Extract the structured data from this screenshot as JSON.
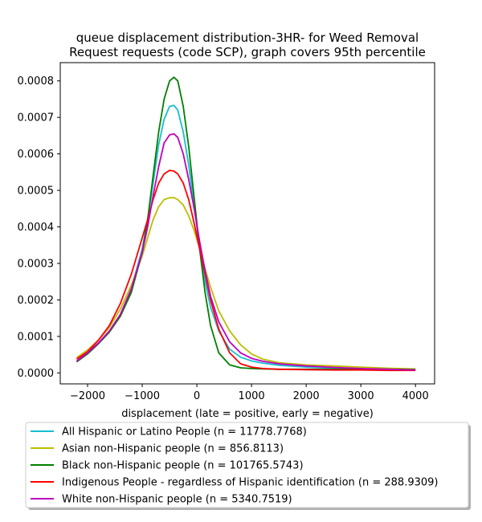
{
  "chart_data": {
    "type": "line",
    "title_lines": [
      "queue displacement distribution-3HR-  for Weed Removal",
      "Request  requests (code SCP), graph covers 95th percentile"
    ],
    "xlabel": "displacement (late = positive, early = negative)",
    "ylabel": "",
    "xlim": [
      -2500,
      4350
    ],
    "ylim": [
      -3e-05,
      0.00085
    ],
    "xticks": [
      -2000,
      -1000,
      0,
      1000,
      2000,
      3000,
      4000
    ],
    "xtick_labels": [
      "−2000",
      "−1000",
      "0",
      "1000",
      "2000",
      "3000",
      "4000"
    ],
    "yticks": [
      0.0,
      0.0001,
      0.0002,
      0.0003,
      0.0004,
      0.0005,
      0.0006,
      0.0007,
      0.0008
    ],
    "ytick_labels": [
      "0.0000",
      "0.0001",
      "0.0002",
      "0.0003",
      "0.0004",
      "0.0005",
      "0.0006",
      "0.0007",
      "0.0008"
    ],
    "grid": false,
    "legend_position": "below",
    "series": [
      {
        "name": "All Hispanic or Latino People (n = 11778.7768)",
        "color": "#17becf",
        "x": [
          -2200,
          -2000,
          -1800,
          -1600,
          -1400,
          -1200,
          -1000,
          -900,
          -800,
          -700,
          -600,
          -500,
          -420,
          -350,
          -250,
          -150,
          -50,
          50,
          150,
          250,
          400,
          600,
          800,
          1000,
          1200,
          1500,
          2000,
          2500,
          3000,
          3500,
          4000
        ],
        "y": [
          3.2e-05,
          5.5e-05,
          8.2e-05,
          0.000115,
          0.00016,
          0.00023,
          0.00034,
          0.00042,
          0.00052,
          0.000625,
          0.000695,
          0.00073,
          0.000733,
          0.00072,
          0.00066,
          0.00057,
          0.00046,
          0.00034,
          0.00025,
          0.00018,
          0.000115,
          6.5e-05,
          4.3e-05,
          3.3e-05,
          2.7e-05,
          2.1e-05,
          1.6e-05,
          1.3e-05,
          1.1e-05,
          1e-05,
          9e-06
        ]
      },
      {
        "name": "Asian non-Hispanic people (n = 856.8113)",
        "color": "#bcbd00",
        "x": [
          -2200,
          -2000,
          -1800,
          -1600,
          -1400,
          -1200,
          -1000,
          -900,
          -800,
          -700,
          -600,
          -500,
          -420,
          -350,
          -250,
          -150,
          -50,
          50,
          150,
          250,
          400,
          600,
          800,
          1000,
          1200,
          1500,
          2000,
          2500,
          3000,
          3500,
          4000
        ],
        "y": [
          4.2e-05,
          6.3e-05,
          9e-05,
          0.000125,
          0.000175,
          0.00024,
          0.00032,
          0.00037,
          0.00042,
          0.000455,
          0.000475,
          0.00048,
          0.00048,
          0.000475,
          0.00046,
          0.00043,
          0.00039,
          0.00034,
          0.000285,
          0.000235,
          0.00017,
          0.000115,
          7.7e-05,
          5.2e-05,
          3.8e-05,
          2.8e-05,
          2.2e-05,
          1.9e-05,
          1.6e-05,
          1.3e-05,
          1.1e-05
        ]
      },
      {
        "name": "Black non-Hispanic people (n = 101765.5743)",
        "color": "#008000",
        "x": [
          -2200,
          -2000,
          -1800,
          -1600,
          -1400,
          -1200,
          -1000,
          -900,
          -800,
          -700,
          -600,
          -500,
          -420,
          -350,
          -250,
          -150,
          -50,
          50,
          150,
          250,
          400,
          600,
          800,
          1000,
          1200,
          1500,
          2000,
          2500,
          3000,
          3500,
          4000
        ],
        "y": [
          3e-05,
          5.2e-05,
          8e-05,
          0.000112,
          0.000155,
          0.00022,
          0.00033,
          0.00042,
          0.00054,
          0.00066,
          0.00075,
          0.0008,
          0.00081,
          0.0008,
          0.00073,
          0.00062,
          0.00048,
          0.00034,
          0.00022,
          0.00013,
          5.5e-05,
          2.2e-05,
          1.4e-05,
          1.2e-05,
          1.1e-05,
          1e-05,
          1e-05,
          1e-05,
          1e-05,
          1e-05,
          9e-06
        ]
      },
      {
        "name": "Indigenous People - regardless of Hispanic identification (n = 288.9309)",
        "color": "#ff0000",
        "x": [
          -2200,
          -2000,
          -1800,
          -1600,
          -1400,
          -1200,
          -1000,
          -900,
          -800,
          -700,
          -600,
          -500,
          -420,
          -350,
          -250,
          -150,
          -50,
          50,
          150,
          250,
          400,
          600,
          800,
          1000,
          1200,
          1500,
          2000,
          2500,
          3000,
          3500,
          4000
        ],
        "y": [
          3.8e-05,
          5.8e-05,
          9e-05,
          0.00013,
          0.00019,
          0.00027,
          0.00037,
          0.00042,
          0.000475,
          0.00052,
          0.000545,
          0.000555,
          0.000553,
          0.000545,
          0.00052,
          0.000475,
          0.00041,
          0.00034,
          0.00027,
          0.0002,
          0.00012,
          5.5e-05,
          2.5e-05,
          1.6e-05,
          1.2e-05,
          1e-05,
          9e-06,
          8e-06,
          8e-06,
          7e-06,
          7e-06
        ]
      },
      {
        "name": "White non-Hispanic people (n = 5340.7519)",
        "color": "#bf00bf",
        "x": [
          -2200,
          -2000,
          -1800,
          -1600,
          -1400,
          -1200,
          -1000,
          -900,
          -800,
          -700,
          -600,
          -500,
          -420,
          -350,
          -250,
          -150,
          -50,
          50,
          150,
          250,
          400,
          600,
          800,
          1000,
          1200,
          1500,
          2000,
          2500,
          3000,
          3500,
          4000
        ],
        "y": [
          3.2e-05,
          5.5e-05,
          8.2e-05,
          0.000115,
          0.00016,
          0.00023,
          0.00033,
          0.0004,
          0.000485,
          0.000565,
          0.00063,
          0.000652,
          0.000655,
          0.000645,
          0.0006,
          0.00053,
          0.00045,
          0.00036,
          0.00028,
          0.00021,
          0.00014,
          8.5e-05,
          5.5e-05,
          4e-05,
          3.2e-05,
          2.5e-05,
          1.9e-05,
          1.5e-05,
          1.2e-05,
          1e-05,
          8e-06
        ]
      }
    ]
  }
}
